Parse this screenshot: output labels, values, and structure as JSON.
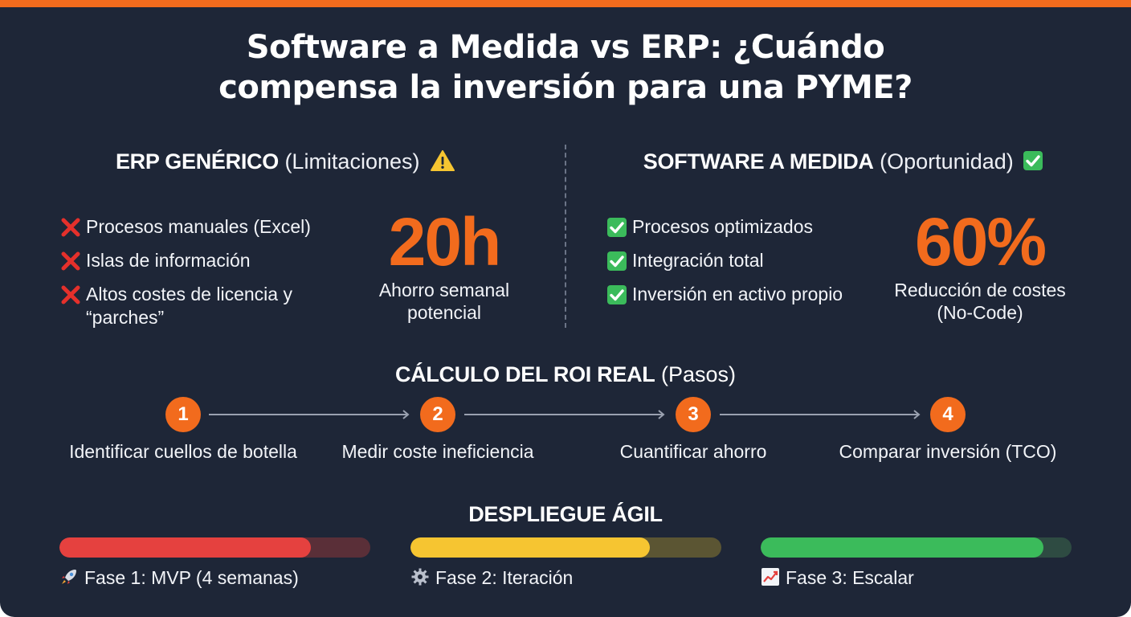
{
  "title_line1": "Software a Medida vs ERP: ¿Cuándo",
  "title_line2": "compensa la inversión para una PYME?",
  "erp": {
    "heading_bold": "ERP GENÉRICO",
    "heading_light": "(Limitaciones)",
    "icon": "warning-icon",
    "items": [
      "Procesos manuales (Excel)",
      "Islas de información",
      "Altos costes de licencia y",
      "“parches”"
    ],
    "item_icon": "red-cross-icon",
    "stat_value": "20h",
    "stat_label_line1": "Ahorro semanal",
    "stat_label_line2": "potencial"
  },
  "custom": {
    "heading_bold": "SOFTWARE A MEDIDA",
    "heading_light": "(Oportunidad)",
    "icon": "green-check-icon",
    "items": [
      "Procesos optimizados",
      "Integración total",
      "Inversión en activo propio"
    ],
    "item_icon": "green-check-icon",
    "stat_value": "60%",
    "stat_label_line1": "Reducción de costes",
    "stat_label_line2": "(No-Code)"
  },
  "roi": {
    "heading_bold": "CÁLCULO DEL ROI REAL",
    "heading_light": "(Pasos)",
    "steps": [
      {
        "number": "1",
        "label": "Identificar cuellos de botella"
      },
      {
        "number": "2",
        "label": "Medir coste ineficiencia"
      },
      {
        "number": "3",
        "label": "Cuantificar ahorro"
      },
      {
        "number": "4",
        "label": "Comparar inversión (TCO)"
      }
    ]
  },
  "deploy": {
    "heading": "DESPLIEGUE ÁGIL",
    "phases": [
      {
        "icon": "rocket-icon",
        "label": "Fase 1: MVP (4 semanas)",
        "progress": 0.81,
        "color": "#e5413f",
        "track_color": "#5a2f38"
      },
      {
        "icon": "gear-icon",
        "label": "Fase 2: Iteración",
        "progress": 0.77,
        "color": "#f6c531",
        "track_color": "#5b5533"
      },
      {
        "icon": "chart-up-icon",
        "label": "Fase 3: Escalar",
        "progress": 0.91,
        "color": "#3bbb5b",
        "track_color": "#2e4b42"
      }
    ]
  },
  "colors": {
    "background": "#1e2637",
    "accent": "#f26b1d"
  }
}
